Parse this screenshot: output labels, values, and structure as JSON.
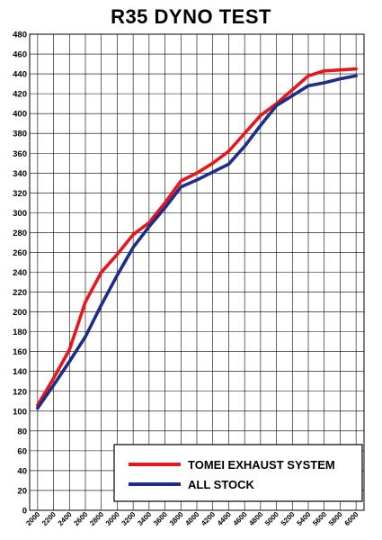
{
  "chart_data": {
    "type": "line",
    "title": "R35 DYNO TEST",
    "xlabel": "",
    "ylabel": "",
    "x": [
      2000,
      2200,
      2400,
      2600,
      2800,
      3000,
      3200,
      3400,
      3600,
      3800,
      4000,
      4200,
      4400,
      4600,
      4800,
      5000,
      5200,
      5400,
      5600,
      5800,
      6000
    ],
    "xlim": [
      1900,
      6100
    ],
    "ylim": [
      0,
      480
    ],
    "ytick_step": 20,
    "grid": true,
    "legend_position": "bottom-right",
    "series": [
      {
        "name": "TOMEI EXHAUST SYSTEM",
        "color": "#e8161b",
        "values": [
          106,
          133,
          162,
          210,
          240,
          258,
          278,
          290,
          310,
          332,
          340,
          350,
          362,
          380,
          398,
          410,
          424,
          438,
          443,
          444,
          445
        ]
      },
      {
        "name": "ALL STOCK",
        "color": "#1d2e88",
        "values": [
          103,
          126,
          150,
          175,
          207,
          237,
          265,
          286,
          305,
          326,
          333,
          341,
          349,
          367,
          388,
          408,
          418,
          428,
          431,
          435,
          438
        ]
      }
    ]
  }
}
